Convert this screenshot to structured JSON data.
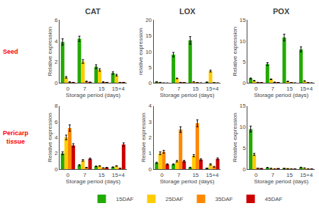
{
  "chart_data": [
    {
      "type": "bar",
      "title": "CAT",
      "annotations": [
        {
          "text": "Seed",
          "color": "red"
        }
      ],
      "categories": [
        "0",
        "7",
        "15",
        "15+4"
      ],
      "xlabel": "Storage period (days)",
      "ylabel": "Relative expression",
      "ylim": [
        0,
        6
      ],
      "yticks": [
        0,
        2,
        4,
        6
      ],
      "grid": false,
      "series": [
        {
          "name": "15DAF",
          "color": "#22aa00",
          "values": [
            3.9,
            4.2,
            1.55,
            0.95
          ],
          "errors": [
            0.3,
            0.25,
            0.18,
            0.12
          ]
        },
        {
          "name": "25DAF",
          "color": "#ffcc00",
          "values": [
            0.55,
            2.05,
            1.25,
            0.75
          ],
          "errors": [
            0.08,
            0.18,
            0.12,
            0.08
          ]
        },
        {
          "name": "35DAF",
          "color": "#ff8800",
          "values": [
            0.1,
            0.15,
            0.1,
            0.05
          ],
          "errors": [
            0.03,
            0.04,
            0.03,
            0.02
          ]
        },
        {
          "name": "45DAF",
          "color": "#cc0000",
          "values": [
            0.05,
            0.08,
            0.05,
            0.05
          ],
          "errors": [
            0.02,
            0.02,
            0.02,
            0.02
          ]
        }
      ]
    },
    {
      "type": "bar",
      "title": "LOX",
      "categories": [
        "0",
        "7",
        "15",
        "15+4"
      ],
      "xlabel": "Storage period (days)",
      "ylabel": "relative expression",
      "ylim": [
        0,
        20
      ],
      "yticks": [
        0,
        5,
        10,
        15,
        20
      ],
      "grid": false,
      "series": [
        {
          "name": "15DAF",
          "color": "#22aa00",
          "values": [
            0.4,
            9.0,
            13.5,
            0.3
          ],
          "errors": [
            0.08,
            0.7,
            1.2,
            0.04
          ]
        },
        {
          "name": "25DAF",
          "color": "#ffcc00",
          "values": [
            0.2,
            1.5,
            0.4,
            3.8
          ],
          "errors": [
            0.04,
            0.1,
            0.06,
            0.3
          ]
        },
        {
          "name": "35DAF",
          "color": "#ff8800",
          "values": [
            0.05,
            0.2,
            0.15,
            0.1
          ],
          "errors": [
            0.02,
            0.04,
            0.03,
            0.02
          ]
        },
        {
          "name": "45DAF",
          "color": "#cc0000",
          "values": [
            0.03,
            0.1,
            0.05,
            0.05
          ],
          "errors": [
            0.01,
            0.02,
            0.02,
            0.01
          ]
        }
      ]
    },
    {
      "type": "bar",
      "title": "POX",
      "categories": [
        "0",
        "7",
        "15",
        "15+4"
      ],
      "xlabel": "Storage period (days)",
      "ylabel": "Relative expression",
      "ylim": [
        0,
        15
      ],
      "yticks": [
        0,
        5,
        10,
        15
      ],
      "grid": false,
      "series": [
        {
          "name": "15DAF",
          "color": "#22aa00",
          "values": [
            1.1,
            4.5,
            10.8,
            8.0
          ],
          "errors": [
            0.12,
            0.35,
            0.8,
            0.6
          ]
        },
        {
          "name": "25DAF",
          "color": "#ffcc00",
          "values": [
            0.55,
            0.9,
            0.4,
            0.5
          ],
          "errors": [
            0.06,
            0.08,
            0.06,
            0.07
          ]
        },
        {
          "name": "35DAF",
          "color": "#ff8800",
          "values": [
            0.15,
            0.2,
            0.1,
            0.1
          ],
          "errors": [
            0.03,
            0.03,
            0.02,
            0.02
          ]
        },
        {
          "name": "45DAF",
          "color": "#cc0000",
          "values": [
            0.08,
            0.1,
            0.05,
            0.05
          ],
          "errors": [
            0.02,
            0.02,
            0.02,
            0.02
          ]
        }
      ]
    },
    {
      "type": "bar",
      "annotations": [
        {
          "text": "Pericarp\ntissue",
          "color": "red"
        }
      ],
      "categories": [
        "0",
        "7",
        "15",
        "15+4"
      ],
      "xlabel": "Storage period (days)",
      "ylabel": "Relative expression",
      "ylim": [
        0,
        8
      ],
      "yticks": [
        0,
        2,
        4,
        6,
        8
      ],
      "grid": false,
      "series": [
        {
          "name": "15DAF",
          "color": "#22aa00",
          "values": [
            2.0,
            0.5,
            0.35,
            0.25
          ],
          "errors": [
            0.18,
            0.07,
            0.04,
            0.03
          ]
        },
        {
          "name": "25DAF",
          "color": "#ffcc00",
          "values": [
            4.0,
            1.1,
            0.4,
            0.4
          ],
          "errors": [
            0.3,
            0.1,
            0.04,
            0.04
          ]
        },
        {
          "name": "35DAF",
          "color": "#ff8800",
          "values": [
            5.2,
            0.2,
            0.15,
            0.1
          ],
          "errors": [
            0.4,
            0.03,
            0.02,
            0.02
          ]
        },
        {
          "name": "45DAF",
          "color": "#cc0000",
          "values": [
            3.0,
            1.3,
            0.2,
            3.1
          ],
          "errors": [
            0.22,
            0.1,
            0.03,
            0.22
          ]
        }
      ]
    },
    {
      "type": "bar",
      "categories": [
        "0",
        "7",
        "15",
        "15+4"
      ],
      "xlabel": "Storage period (days)",
      "ylabel": "Relative expression",
      "ylim": [
        0,
        4
      ],
      "yticks": [
        0,
        1,
        2,
        3,
        4
      ],
      "grid": false,
      "series": [
        {
          "name": "15DAF",
          "color": "#22aa00",
          "values": [
            0.4,
            0.3,
            0.1,
            0.05
          ],
          "errors": [
            0.04,
            0.03,
            0.02,
            0.02
          ]
        },
        {
          "name": "25DAF",
          "color": "#ffcc00",
          "values": [
            1.0,
            0.5,
            0.85,
            0.3
          ],
          "errors": [
            0.09,
            0.05,
            0.07,
            0.04
          ]
        },
        {
          "name": "35DAF",
          "color": "#ff8800",
          "values": [
            1.1,
            2.5,
            2.9,
            0.15
          ],
          "errors": [
            0.09,
            0.18,
            0.22,
            0.02
          ]
        },
        {
          "name": "45DAF",
          "color": "#cc0000",
          "values": [
            0.3,
            0.5,
            0.6,
            0.65
          ],
          "errors": [
            0.04,
            0.06,
            0.06,
            0.06
          ]
        }
      ]
    },
    {
      "type": "bar",
      "categories": [
        "0",
        "7",
        "15",
        "15+4"
      ],
      "xlabel": "Storage period (days)",
      "ylabel": "Relative expression",
      "ylim": [
        0,
        15
      ],
      "yticks": [
        0,
        5,
        10,
        15
      ],
      "grid": false,
      "series": [
        {
          "name": "15DAF",
          "color": "#22aa00",
          "values": [
            9.5,
            0.35,
            0.15,
            0.4
          ],
          "errors": [
            0.7,
            0.05,
            0.03,
            0.05
          ]
        },
        {
          "name": "25DAF",
          "color": "#ffcc00",
          "values": [
            3.5,
            0.18,
            0.1,
            0.25
          ],
          "errors": [
            0.25,
            0.03,
            0.02,
            0.04
          ]
        },
        {
          "name": "35DAF",
          "color": "#ff8800",
          "values": [
            0.2,
            0.05,
            0.04,
            0.04
          ],
          "errors": [
            0.03,
            0.01,
            0.01,
            0.01
          ]
        },
        {
          "name": "45DAF",
          "color": "#cc0000",
          "values": [
            0.1,
            0.08,
            0.04,
            0.04
          ],
          "errors": [
            0.02,
            0.01,
            0.01,
            0.01
          ]
        }
      ]
    }
  ]
}
